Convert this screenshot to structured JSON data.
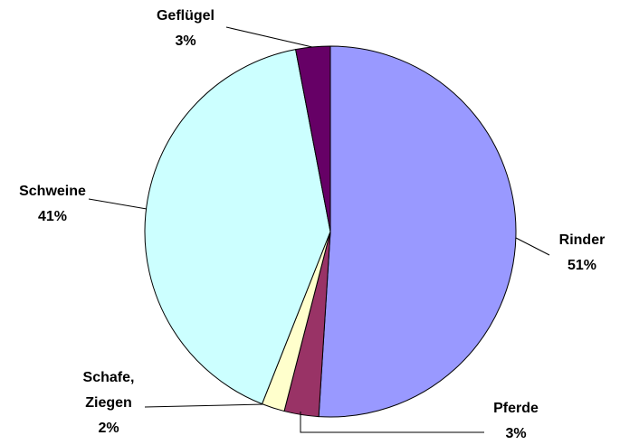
{
  "chart_data": {
    "type": "pie",
    "categories": [
      "Rinder",
      "Pferde",
      "Schafe, Ziegen",
      "Schweine",
      "Geflügel"
    ],
    "values": [
      51,
      3,
      2,
      41,
      3
    ],
    "value_labels": [
      "51%",
      "3%",
      "2%",
      "41%",
      "3%"
    ],
    "colors": [
      "#9999ff",
      "#993366",
      "#ffffcc",
      "#ccffff",
      "#660066"
    ]
  }
}
